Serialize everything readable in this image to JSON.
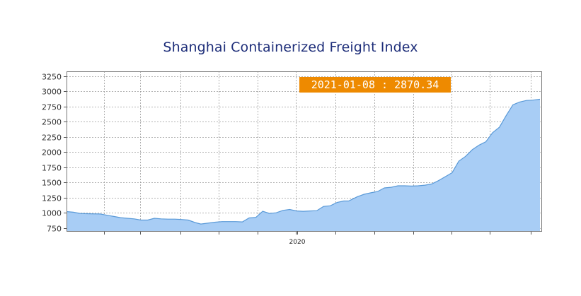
{
  "chart_data": {
    "type": "area",
    "title": "Shanghai Containerized Freight Index",
    "xlabel": "",
    "ylabel": "",
    "ylim": [
      700,
      3330
    ],
    "yticks": [
      750,
      1000,
      1250,
      1500,
      1750,
      2000,
      2250,
      2500,
      2750,
      3000,
      3250
    ],
    "x_tick_labels": [
      "2020"
    ],
    "grid": true,
    "legend": "none",
    "annotation": {
      "date": "2021-01-08",
      "value": "2870.34",
      "text": "2021-01-08 : 2870.34"
    },
    "colors": {
      "fill": "#a8cdf5",
      "line": "#5a9ad8",
      "annotation_bg": "#ee8a00",
      "title": "#1f2f7a",
      "grid": "#9a9a9a"
    },
    "series": [
      {
        "dates": [
          "2019-09-06",
          "2019-09-13",
          "2019-09-20",
          "2019-09-27",
          "2019-10-11",
          "2019-10-18",
          "2019-10-25",
          "2019-11-01",
          "2019-11-08",
          "2019-11-15",
          "2019-11-22",
          "2019-11-29",
          "2019-12-06",
          "2019-12-13",
          "2019-12-20",
          "2019-12-27",
          "2020-01-03",
          "2020-01-10",
          "2020-01-17",
          "2020-01-23",
          "2020-02-07",
          "2020-02-14",
          "2020-02-21",
          "2020-02-28",
          "2020-03-06",
          "2020-03-13",
          "2020-03-20",
          "2020-03-27",
          "2020-04-03",
          "2020-04-10",
          "2020-04-17",
          "2020-04-24",
          "2020-05-01",
          "2020-05-08",
          "2020-05-15",
          "2020-05-22",
          "2020-05-29",
          "2020-06-05",
          "2020-06-12",
          "2020-06-19",
          "2020-06-24",
          "2020-07-03",
          "2020-07-10",
          "2020-07-17",
          "2020-07-24",
          "2020-07-31",
          "2020-08-07",
          "2020-08-14",
          "2020-08-21",
          "2020-08-28",
          "2020-09-04",
          "2020-09-11",
          "2020-09-18",
          "2020-09-25",
          "2020-10-09",
          "2020-10-16",
          "2020-10-23",
          "2020-10-30",
          "2020-11-06",
          "2020-11-13",
          "2020-11-20",
          "2020-11-27",
          "2020-12-04",
          "2020-12-11",
          "2020-12-18",
          "2020-12-25",
          "2020-12-31",
          "2021-01-08"
        ],
        "values": [
          1020,
          1010,
          990,
          985,
          980,
          960,
          940,
          920,
          910,
          900,
          880,
          880,
          910,
          900,
          895,
          895,
          890,
          880,
          840,
          815,
          845,
          855,
          855,
          855,
          850,
          915,
          925,
          1025,
          990,
          1000,
          1040,
          1055,
          1030,
          1025,
          1030,
          1035,
          1105,
          1115,
          1170,
          1195,
          1195,
          1265,
          1305,
          1330,
          1350,
          1410,
          1420,
          1445,
          1445,
          1440,
          1445,
          1455,
          1475,
          1530,
          1660,
          1850,
          1930,
          2040,
          2115,
          2170,
          2320,
          2410,
          2600,
          2780,
          2825,
          2850,
          2855,
          2870.34
        ]
      }
    ]
  }
}
